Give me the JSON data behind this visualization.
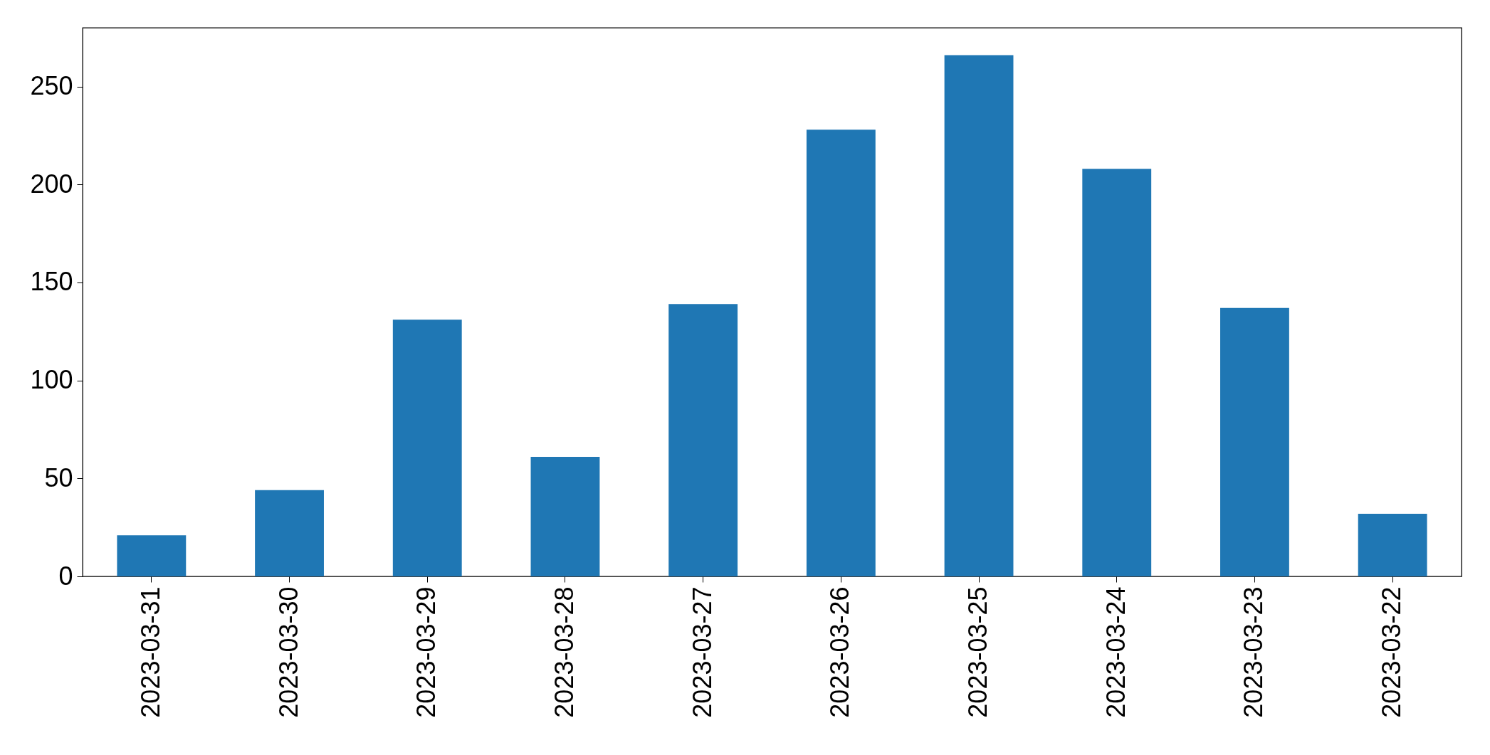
{
  "chart_data": {
    "type": "bar",
    "categories": [
      "2023-03-31",
      "2023-03-30",
      "2023-03-29",
      "2023-03-28",
      "2023-03-27",
      "2023-03-26",
      "2023-03-25",
      "2023-03-24",
      "2023-03-23",
      "2023-03-22"
    ],
    "values": [
      21,
      44,
      131,
      61,
      139,
      228,
      266,
      208,
      137,
      32
    ],
    "color": "#1f77b4",
    "ylim": [
      0,
      280
    ],
    "yticks": [
      0,
      50,
      100,
      150,
      200,
      250
    ],
    "grid": false
  }
}
